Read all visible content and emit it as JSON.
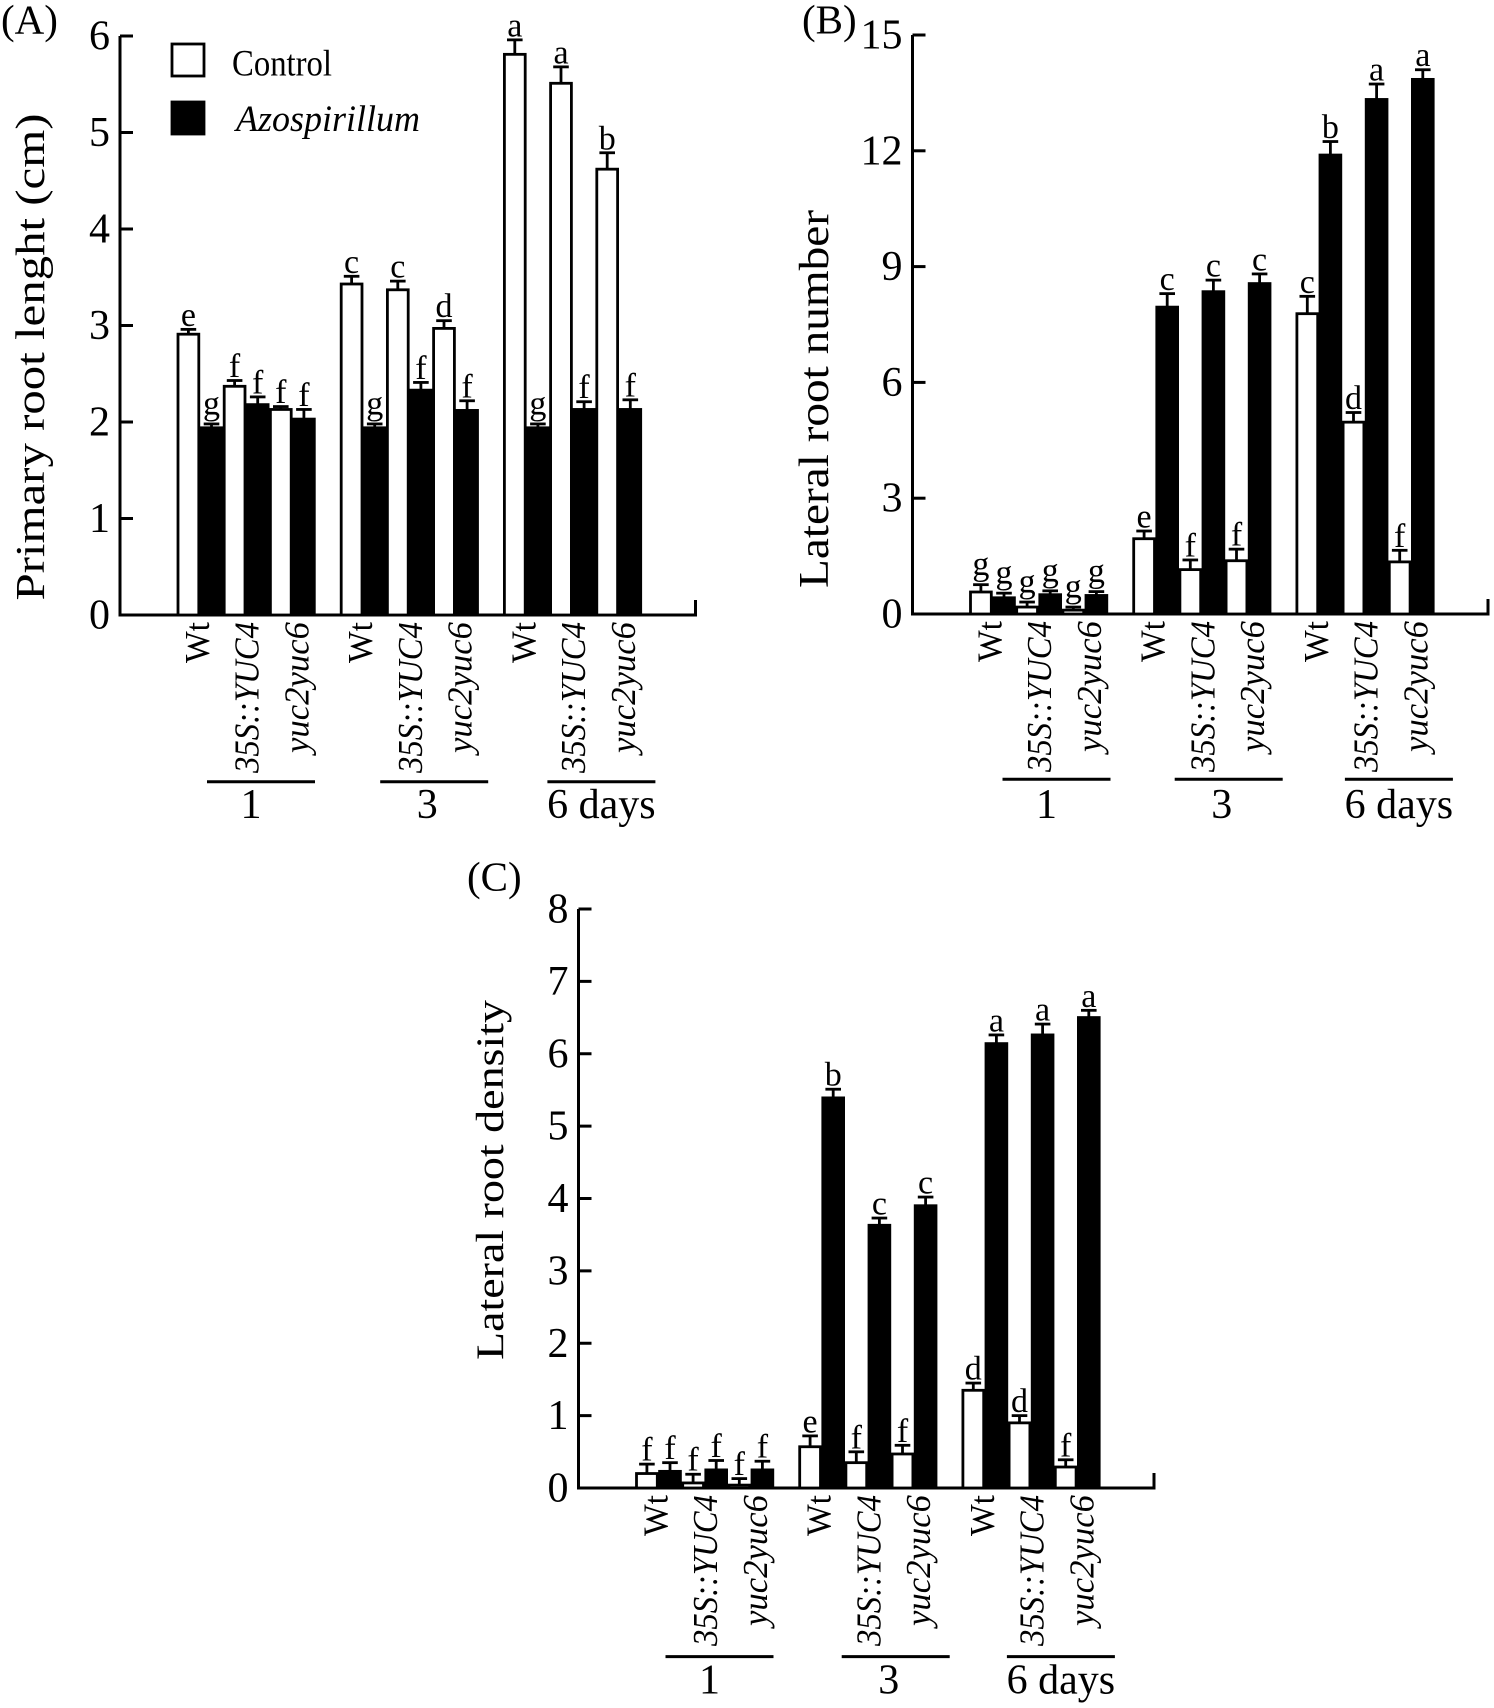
{
  "figure": {
    "background_color": "#ffffff",
    "ink_color": "#000000",
    "legend": {
      "items": [
        {
          "label": "Control",
          "swatch": "open-square",
          "italic": false
        },
        {
          "label": "Azospirillum",
          "swatch": "filled-square",
          "italic": true
        }
      ]
    }
  },
  "chart_data": [
    {
      "type": "bar",
      "panel_label": "(A)",
      "ylabel": "Primary root lenght (cm)",
      "xlabel": "",
      "ylim": [
        0,
        6
      ],
      "yticks": [
        0,
        1,
        2,
        3,
        4,
        5,
        6
      ],
      "grid": false,
      "legend_position": "top-left-inside",
      "group_labels": [
        "1",
        "3",
        "6 days"
      ],
      "categories": [
        "Wt",
        "35S::YUC4",
        "yuc2yuc6"
      ],
      "series": [
        {
          "name": "Control",
          "fill": "white",
          "values": [
            [
              2.91,
              2.37,
              2.13
            ],
            [
              3.43,
              3.37,
              2.97
            ],
            [
              5.81,
              5.51,
              4.62
            ]
          ],
          "errors": [
            [
              0.05,
              0.06,
              0.03
            ],
            [
              0.08,
              0.09,
              0.08
            ],
            [
              0.15,
              0.17,
              0.17
            ]
          ],
          "letters": [
            [
              "e",
              "f",
              "f"
            ],
            [
              "c",
              "c",
              "d"
            ],
            [
              "a",
              "a",
              "b"
            ]
          ]
        },
        {
          "name": "Azospirillum",
          "fill": "black",
          "values": [
            [
              1.94,
              2.18,
              2.03
            ],
            [
              1.94,
              2.33,
              2.12
            ],
            [
              1.94,
              2.13,
              2.13
            ]
          ],
          "errors": [
            [
              0.04,
              0.08,
              0.1
            ],
            [
              0.04,
              0.08,
              0.1
            ],
            [
              0.04,
              0.08,
              0.1
            ]
          ],
          "letters": [
            [
              "g",
              "f",
              "f"
            ],
            [
              "g",
              "f",
              "f"
            ],
            [
              "g",
              "f",
              "f"
            ]
          ]
        }
      ]
    },
    {
      "type": "bar",
      "panel_label": "(B)",
      "ylabel": "Lateral root number",
      "xlabel": "",
      "ylim": [
        0,
        15
      ],
      "yticks": [
        0,
        3,
        6,
        9,
        12,
        15
      ],
      "grid": false,
      "legend_position": "none",
      "group_labels": [
        "1",
        "3",
        "6 days"
      ],
      "categories": [
        "Wt",
        "35S::YUC4",
        "yuc2yuc6"
      ],
      "series": [
        {
          "name": "Control",
          "fill": "white",
          "values": [
            [
              0.57,
              0.18,
              0.1
            ],
            [
              1.95,
              1.15,
              1.38
            ],
            [
              7.78,
              4.97,
              1.35
            ]
          ],
          "errors": [
            [
              0.19,
              0.13,
              0.08
            ],
            [
              0.2,
              0.25,
              0.3
            ],
            [
              0.45,
              0.25,
              0.3
            ]
          ],
          "letters": [
            [
              "g",
              "g",
              "g"
            ],
            [
              "e",
              "f",
              "f"
            ],
            [
              "c",
              "d",
              "f"
            ]
          ]
        },
        {
          "name": "Azospirillum",
          "fill": "black",
          "values": [
            [
              0.42,
              0.5,
              0.48
            ],
            [
              7.95,
              8.35,
              8.56
            ],
            [
              11.89,
              13.33,
              13.85
            ]
          ],
          "errors": [
            [
              0.12,
              0.1,
              0.1
            ],
            [
              0.35,
              0.3,
              0.25
            ],
            [
              0.35,
              0.4,
              0.25
            ]
          ],
          "letters": [
            [
              "g",
              "g",
              "g"
            ],
            [
              "c",
              "c",
              "c"
            ],
            [
              "b",
              "a",
              "a"
            ]
          ]
        }
      ]
    },
    {
      "type": "bar",
      "panel_label": "(C)",
      "ylabel": "Lateral root density",
      "xlabel": "",
      "ylim": [
        0,
        8
      ],
      "yticks": [
        0,
        1,
        2,
        3,
        4,
        5,
        6,
        7,
        8
      ],
      "grid": false,
      "legend_position": "none",
      "group_labels": [
        "1",
        "3",
        "6 days"
      ],
      "categories": [
        "Wt",
        "35S::YUC4",
        "yuc2yuc6"
      ],
      "series": [
        {
          "name": "Control",
          "fill": "white",
          "values": [
            [
              0.2,
              0.07,
              0.04
            ],
            [
              0.57,
              0.35,
              0.47
            ],
            [
              1.35,
              0.9,
              0.29
            ]
          ],
          "errors": [
            [
              0.13,
              0.12,
              0.09
            ],
            [
              0.15,
              0.15,
              0.12
            ],
            [
              0.1,
              0.1,
              0.1
            ]
          ],
          "letters": [
            [
              "f",
              "f",
              "f"
            ],
            [
              "e",
              "f",
              "f"
            ],
            [
              "d",
              "d",
              "f"
            ]
          ]
        },
        {
          "name": "Azospirillum",
          "fill": "black",
          "values": [
            [
              0.23,
              0.25,
              0.25
            ],
            [
              5.39,
              3.63,
              3.9
            ],
            [
              6.14,
              6.26,
              6.5
            ]
          ],
          "errors": [
            [
              0.12,
              0.13,
              0.12
            ],
            [
              0.12,
              0.1,
              0.12
            ],
            [
              0.12,
              0.15,
              0.1
            ]
          ],
          "letters": [
            [
              "f",
              "f",
              "f"
            ],
            [
              "b",
              "c",
              "c"
            ],
            [
              "a",
              "a",
              "a"
            ]
          ]
        }
      ]
    }
  ]
}
